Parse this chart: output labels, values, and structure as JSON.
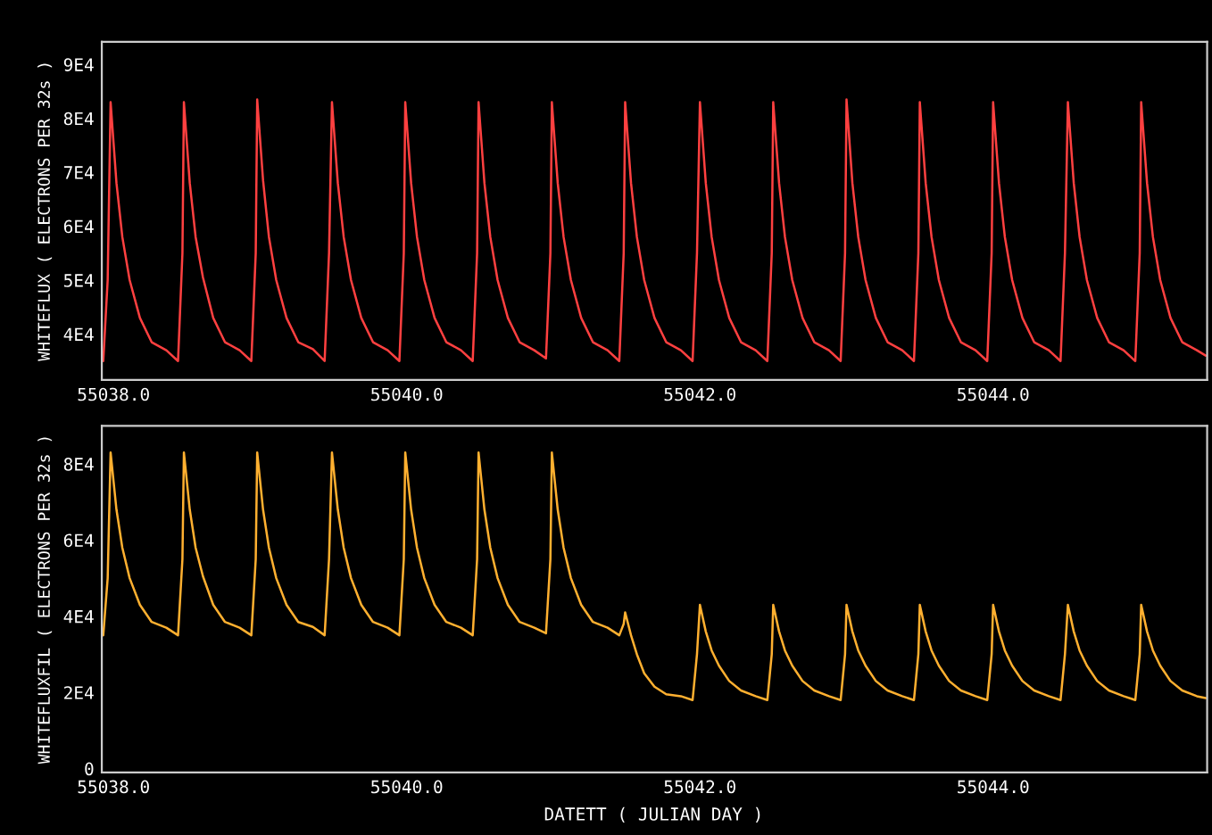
{
  "chart_data": [
    {
      "type": "line",
      "ylabel": "WHITEFLUX ( ELECTRONS PER 32s )",
      "xlim": [
        55037.92,
        55045.46
      ],
      "ylim": [
        31500,
        94200
      ],
      "xticks": [
        {
          "value": 55038,
          "label": "55038.0"
        },
        {
          "value": 55040,
          "label": "55040.0"
        },
        {
          "value": 55042,
          "label": "55042.0"
        },
        {
          "value": 55044,
          "label": "55044.0"
        }
      ],
      "yticks": [
        {
          "value": 40000,
          "label": "4E4"
        },
        {
          "value": 50000,
          "label": "5E4"
        },
        {
          "value": 60000,
          "label": "6E4"
        },
        {
          "value": 70000,
          "label": "7E4"
        },
        {
          "value": 80000,
          "label": "8E4"
        },
        {
          "value": 90000,
          "label": "9E4"
        }
      ],
      "grid": false,
      "marker": "none",
      "line_style": "solid",
      "x": [
        55037.93,
        55037.96,
        55037.98,
        55038.02,
        55038.06,
        55038.11,
        55038.18,
        55038.26,
        55038.36,
        55038.44,
        55038.47,
        55038.48,
        55038.52,
        55038.56,
        55038.61,
        55038.68,
        55038.76,
        55038.86,
        55038.94,
        55038.97,
        55038.98,
        55039.02,
        55039.06,
        55039.11,
        55039.18,
        55039.26,
        55039.36,
        55039.44,
        55039.47,
        55039.49,
        55039.53,
        55039.57,
        55039.62,
        55039.69,
        55039.77,
        55039.87,
        55039.95,
        55039.98,
        55039.99,
        55040.03,
        55040.07,
        55040.12,
        55040.19,
        55040.27,
        55040.37,
        55040.45,
        55040.48,
        55040.49,
        55040.53,
        55040.57,
        55040.62,
        55040.69,
        55040.77,
        55040.87,
        55040.95,
        55040.98,
        55040.99,
        55041.03,
        55041.07,
        55041.12,
        55041.19,
        55041.27,
        55041.37,
        55041.45,
        55041.48,
        55041.49,
        55041.53,
        55041.57,
        55041.62,
        55041.69,
        55041.77,
        55041.87,
        55041.95,
        55041.98,
        55042.0,
        55042.04,
        55042.08,
        55042.13,
        55042.2,
        55042.28,
        55042.38,
        55042.46,
        55042.49,
        55042.5,
        55042.54,
        55042.58,
        55042.63,
        55042.7,
        55042.78,
        55042.88,
        55042.96,
        55042.99,
        55043.0,
        55043.04,
        55043.08,
        55043.13,
        55043.2,
        55043.28,
        55043.38,
        55043.46,
        55043.49,
        55043.5,
        55043.54,
        55043.58,
        55043.63,
        55043.7,
        55043.78,
        55043.88,
        55043.96,
        55043.99,
        55044.0,
        55044.04,
        55044.08,
        55044.13,
        55044.2,
        55044.28,
        55044.38,
        55044.46,
        55044.49,
        55044.51,
        55044.55,
        55044.59,
        55044.64,
        55044.71,
        55044.79,
        55044.89,
        55044.97,
        55045.0,
        55045.01,
        55045.05,
        55045.09,
        55045.14,
        55045.21,
        55045.29,
        55045.39,
        55045.45
      ],
      "series": [
        {
          "color": "#ff4040",
          "values": [
            35000,
            50000,
            83000,
            68000,
            58000,
            50000,
            43000,
            38500,
            37000,
            35000,
            55000,
            83000,
            68000,
            58000,
            50500,
            43000,
            38500,
            37000,
            35000,
            55000,
            83500,
            68500,
            58000,
            50000,
            43000,
            38500,
            37200,
            35000,
            55000,
            83000,
            68000,
            58000,
            50000,
            43000,
            38500,
            37000,
            35000,
            55000,
            83000,
            68000,
            58000,
            50000,
            43000,
            38500,
            37000,
            35000,
            55000,
            83000,
            68000,
            58000,
            50000,
            43000,
            38500,
            37000,
            35500,
            55000,
            83000,
            68000,
            58000,
            50000,
            43000,
            38500,
            37000,
            35000,
            55000,
            83000,
            68000,
            58000,
            50000,
            43000,
            38500,
            37000,
            35000,
            55000,
            83000,
            68000,
            58000,
            50000,
            43000,
            38500,
            37000,
            35000,
            55000,
            83000,
            68000,
            58000,
            50000,
            43000,
            38500,
            37000,
            35000,
            55000,
            83500,
            68000,
            58000,
            50000,
            43000,
            38500,
            37000,
            35000,
            55000,
            83000,
            68000,
            58000,
            50000,
            43000,
            38500,
            37000,
            35000,
            55000,
            83000,
            68000,
            58000,
            50000,
            43000,
            38500,
            37000,
            35000,
            55000,
            83000,
            68000,
            58000,
            50000,
            43000,
            38500,
            37000,
            35000,
            55000,
            83000,
            68000,
            58000,
            50000,
            43000,
            38500,
            37000,
            36000
          ]
        }
      ]
    },
    {
      "type": "line",
      "xlabel": "DATETT ( JULIAN DAY )",
      "ylabel": "WHITEFLUXFIL ( ELECTRONS PER 32s )",
      "xlim": [
        55037.92,
        55045.46
      ],
      "ylim": [
        -1000,
        90000
      ],
      "xticks": [
        {
          "value": 55038,
          "label": "55038.0"
        },
        {
          "value": 55040,
          "label": "55040.0"
        },
        {
          "value": 55042,
          "label": "55042.0"
        },
        {
          "value": 55044,
          "label": "55044.0"
        }
      ],
      "yticks": [
        0,
        {
          "value": 20000,
          "label": "2E4"
        },
        {
          "value": 40000,
          "label": "4E4"
        },
        {
          "value": 60000,
          "label": "6E4"
        },
        {
          "value": 80000,
          "label": "8E4"
        }
      ],
      "grid": false,
      "marker": "none",
      "line_style": "solid",
      "x": [
        55037.93,
        55037.96,
        55037.98,
        55038.02,
        55038.06,
        55038.11,
        55038.18,
        55038.26,
        55038.36,
        55038.44,
        55038.47,
        55038.48,
        55038.52,
        55038.56,
        55038.61,
        55038.68,
        55038.76,
        55038.86,
        55038.94,
        55038.97,
        55038.98,
        55039.02,
        55039.06,
        55039.11,
        55039.18,
        55039.26,
        55039.36,
        55039.44,
        55039.47,
        55039.49,
        55039.53,
        55039.57,
        55039.62,
        55039.69,
        55039.77,
        55039.87,
        55039.95,
        55039.98,
        55039.99,
        55040.03,
        55040.07,
        55040.12,
        55040.19,
        55040.27,
        55040.37,
        55040.45,
        55040.48,
        55040.49,
        55040.53,
        55040.57,
        55040.62,
        55040.69,
        55040.77,
        55040.87,
        55040.95,
        55040.98,
        55040.99,
        55041.03,
        55041.07,
        55041.12,
        55041.19,
        55041.27,
        55041.37,
        55041.45,
        55041.48,
        55041.49,
        55041.53,
        55041.57,
        55041.62,
        55041.69,
        55041.77,
        55041.87,
        55041.95,
        55041.98,
        55042.0,
        55042.04,
        55042.08,
        55042.13,
        55042.2,
        55042.28,
        55042.38,
        55042.46,
        55042.49,
        55042.5,
        55042.54,
        55042.58,
        55042.63,
        55042.7,
        55042.78,
        55042.88,
        55042.96,
        55042.99,
        55043.0,
        55043.04,
        55043.08,
        55043.13,
        55043.2,
        55043.28,
        55043.38,
        55043.46,
        55043.49,
        55043.5,
        55043.54,
        55043.58,
        55043.63,
        55043.7,
        55043.78,
        55043.88,
        55043.96,
        55043.99,
        55044.0,
        55044.04,
        55044.08,
        55044.13,
        55044.2,
        55044.28,
        55044.38,
        55044.46,
        55044.49,
        55044.51,
        55044.55,
        55044.59,
        55044.64,
        55044.71,
        55044.79,
        55044.89,
        55044.97,
        55045.0,
        55045.01,
        55045.05,
        55045.09,
        55045.14,
        55045.21,
        55045.29,
        55045.39,
        55045.45
      ],
      "series": [
        {
          "color": "#ffb030",
          "values": [
            35000,
            50000,
            83000,
            68000,
            58000,
            50000,
            43000,
            38500,
            37000,
            35000,
            55000,
            83000,
            68000,
            58000,
            50500,
            43000,
            38500,
            37000,
            35000,
            55000,
            83000,
            68000,
            58000,
            50000,
            43000,
            38500,
            37200,
            35000,
            55000,
            83000,
            68000,
            58000,
            50000,
            43000,
            38500,
            37000,
            35000,
            55000,
            83000,
            68000,
            58000,
            50000,
            43000,
            38500,
            37000,
            35000,
            55000,
            83000,
            68000,
            58000,
            50000,
            43000,
            38500,
            37000,
            35500,
            55000,
            83000,
            68000,
            58000,
            50000,
            43000,
            38500,
            37000,
            35000,
            38000,
            41000,
            35000,
            30000,
            25000,
            21500,
            19500,
            19000,
            18000,
            30000,
            43000,
            36000,
            31000,
            27000,
            23000,
            20500,
            19000,
            18000,
            30000,
            43000,
            36000,
            31000,
            27000,
            23000,
            20500,
            19000,
            18000,
            30000,
            43000,
            36000,
            31000,
            27000,
            23000,
            20500,
            19000,
            18000,
            30000,
            43000,
            36000,
            31000,
            27000,
            23000,
            20500,
            19000,
            18000,
            30000,
            43000,
            36000,
            31000,
            27000,
            23000,
            20500,
            19000,
            18000,
            30000,
            43000,
            36000,
            31000,
            27000,
            23000,
            20500,
            19000,
            18000,
            30000,
            43000,
            36000,
            31000,
            27000,
            23000,
            20500,
            19000,
            18500
          ]
        }
      ]
    }
  ]
}
